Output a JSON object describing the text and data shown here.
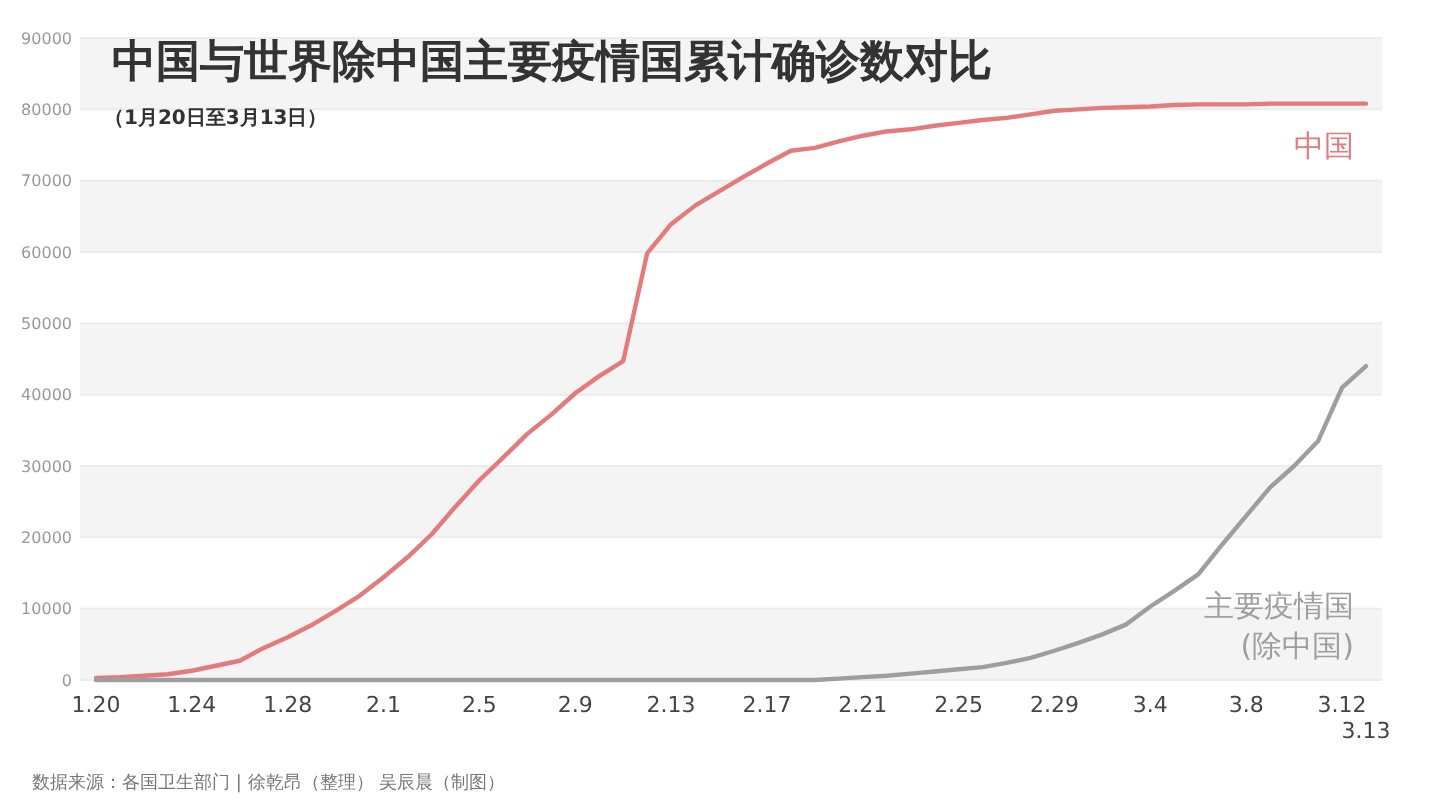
{
  "chart_data": {
    "type": "line",
    "title": "中国与世界除中国主要疫情国累计确诊数对比",
    "subtitle": "（1月20日至3月13日）",
    "categories": [
      "1.20",
      null,
      null,
      null,
      "1.24",
      null,
      null,
      null,
      "1.28",
      null,
      null,
      null,
      "2.1",
      null,
      null,
      null,
      "2.5",
      null,
      null,
      null,
      "2.9",
      null,
      null,
      null,
      "2.13",
      null,
      null,
      null,
      "2.17",
      null,
      null,
      null,
      "2.21",
      null,
      null,
      null,
      "2.25",
      null,
      null,
      null,
      "2.29",
      null,
      null,
      null,
      "3.4",
      null,
      null,
      null,
      "3.8",
      null,
      null,
      null,
      "3.12",
      "3.13"
    ],
    "series": [
      {
        "name": "中国",
        "color": "#e57a7a",
        "values": [
          300,
          400,
          600,
          800,
          1300,
          2000,
          2700,
          4500,
          6000,
          7700,
          9700,
          11800,
          14400,
          17200,
          20400,
          24300,
          28000,
          31200,
          34500,
          37200,
          40200,
          42600,
          44700,
          59800,
          63900,
          66500,
          68500,
          70500,
          72400,
          74200,
          74600,
          75500,
          76300,
          76900,
          77200,
          77700,
          78100,
          78500,
          78800,
          79300,
          79800,
          80000,
          80200,
          80300,
          80400,
          80600,
          80700,
          80700,
          80700,
          80800,
          80800,
          80800,
          80800,
          80800
        ]
      },
      {
        "name": "主要疫情国 (除中国)",
        "color": "#9e9e9e",
        "values": [
          0,
          0,
          0,
          0,
          0,
          0,
          0,
          0,
          0,
          0,
          0,
          0,
          0,
          0,
          0,
          0,
          0,
          0,
          0,
          0,
          0,
          0,
          0,
          0,
          0,
          0,
          0,
          0,
          0,
          0,
          0,
          200,
          400,
          600,
          900,
          1200,
          1500,
          1800,
          2400,
          3100,
          4100,
          5200,
          6400,
          7800,
          10300,
          12500,
          14800,
          19000,
          23000,
          27000,
          30000,
          33500,
          41000,
          44000
        ]
      }
    ],
    "ylim": [
      0,
      90000
    ],
    "yticks": [
      0,
      10000,
      20000,
      30000,
      40000,
      50000,
      60000,
      70000,
      80000,
      90000
    ],
    "grid": "y",
    "marker": "none",
    "line_style": "solid",
    "annotations": [
      "数据来源：各国卫生部门 | 徐乾昂（整理） 吴辰晨（制图）"
    ]
  }
}
